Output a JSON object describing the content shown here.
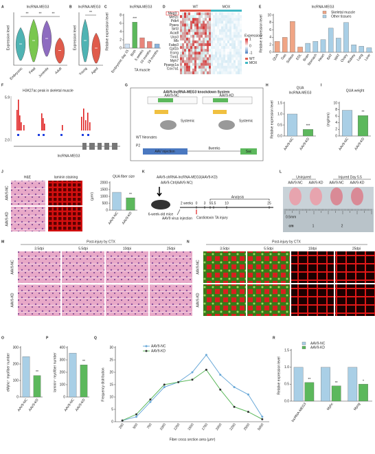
{
  "panels": {
    "A": {
      "label": "A",
      "title": "lncRNA-MEG3",
      "y_label": "Expression level",
      "categories": [
        "Embryonic",
        "Fetal",
        "Juvenile",
        "Adult"
      ],
      "annotations": [
        "**",
        "**",
        "**"
      ]
    },
    "B": {
      "label": "B",
      "title": "lncRNA-MEG3",
      "y_label": "Expression level",
      "categories": [
        "Young",
        "Aged"
      ],
      "annotations": [
        "**"
      ]
    },
    "D": {
      "label": "D",
      "groups": [
        "WT",
        "MOX"
      ],
      "highlight": "Meg3",
      "genes": [
        "Mef2c",
        "Pdk4",
        "Ppara",
        "Sirt3",
        "Acadl",
        "Ucp3",
        "Mb",
        "Fabp3",
        "Cpt1b",
        "Esrrg",
        "Tnni1",
        "Myh7",
        "Ppargc1a",
        "Cox7a1"
      ],
      "legend_title": "Expression",
      "legend_ticks": [
        "1",
        "0",
        "-1"
      ]
    },
    "F": {
      "label": "F",
      "title": "H3K27ac peak in skeletal muscle",
      "y_ticks": [
        "5.9",
        "2.0"
      ],
      "gene": "lncRNA-MEG3"
    },
    "G": {
      "label": "G",
      "title": "AAV9-lncRNA-MEG3 knockdown System",
      "constructs": [
        "AAV9-NC",
        "AAV9-KD"
      ],
      "route": [
        "Systemic",
        "Systemic"
      ],
      "neonates": "WT Neonates",
      "age": "P2",
      "injection": "AAV injection",
      "duration": "8weeks",
      "end": "Sac"
    },
    "J": {
      "label": "J",
      "images": [
        "H&E",
        "laminin staining"
      ],
      "rows": [
        "AAV9-NC",
        "AAV9-KD"
      ]
    },
    "K": {
      "label": "K",
      "groups": [
        "AAV9-shRNA-lncRNA-MEG3(AAV9-KD)",
        "AAV9-Ctrl(AAV9-NC)"
      ],
      "mice": "6-week-old mice",
      "injection": "AAV9 virus injection",
      "interval": "2 weeks",
      "injury": "Cardiotoxin TA injury",
      "analysis": "Analysis",
      "timeline": [
        "0",
        "3",
        "5",
        "5.5",
        "10",
        "25"
      ]
    },
    "L": {
      "label": "L",
      "groups": [
        "Uninjured",
        "Injured Day 5.5"
      ],
      "samples": [
        "AAV9-NC",
        "AAV9-KD",
        "AAV9-NC",
        "AAV9-KD"
      ],
      "scale": "0.5mm",
      "ruler": [
        "cm",
        "1",
        "2"
      ]
    },
    "M": {
      "label": "M",
      "title": "Post-injury by CTX",
      "columns": [
        "3.5dpi",
        "5.5dpi",
        "10dpi",
        "25dpi"
      ],
      "rows": [
        "AAV9-NC",
        "AAV9-KD"
      ]
    },
    "N": {
      "label": "N",
      "title": "Post-injury by CTX",
      "columns": [
        "3.5dpi",
        "5.5dpi",
        "10dpi",
        "25dpi"
      ],
      "rows": [
        "AAV9-NC",
        "AAV9-KD"
      ]
    }
  },
  "chart_data": [
    {
      "type": "bar",
      "panel": "C",
      "title": "lncRNA-MEG3",
      "y_label": "Relative expression level",
      "x_label": "TA muscle",
      "categories": [
        "Embryonic day 15",
        "Birth",
        "5 weeks",
        "10 months",
        "18 months"
      ],
      "values": [
        1.0,
        6.3,
        2.5,
        1.6,
        1.0
      ],
      "colors": [
        "#cfe0f2",
        "#5cb85c",
        "#e8857a",
        "#e8857a",
        "#8ab4dc"
      ],
      "ylim": [
        0,
        8
      ],
      "yticks": [
        0,
        2,
        4,
        6,
        8
      ],
      "annotations": [
        "***"
      ]
    },
    {
      "type": "bar",
      "panel": "E",
      "title": "lncRNA-MEG3",
      "y_label": "Relative expression level",
      "categories": [
        "QUA",
        "Gas",
        "Soleus",
        "EDL",
        "Brain",
        "Stomach",
        "Heart",
        "BAT",
        "WAT",
        "Ovary",
        "Kidney",
        "Lung",
        "Liver"
      ],
      "values": [
        2.9,
        4.0,
        8.3,
        1.4,
        2.4,
        2.9,
        3.4,
        6.5,
        3.8,
        8.0,
        2.0,
        1.6,
        1.2
      ],
      "colors": [
        "#f0a585",
        "#f0a585",
        "#f0a585",
        "#f0a585",
        "#a9cfe6",
        "#a9cfe6",
        "#a9cfe6",
        "#a9cfe6",
        "#a9cfe6",
        "#a9cfe6",
        "#a9cfe6",
        "#a9cfe6",
        "#a9cfe6"
      ],
      "legend": [
        {
          "name": "Skeletal muscle",
          "color": "#f0a585"
        },
        {
          "name": "Other tissues",
          "color": "#a9cfe6"
        }
      ],
      "ylim": [
        0,
        10
      ],
      "yticks": [
        0,
        2,
        4,
        6,
        8,
        10
      ]
    },
    {
      "type": "bar",
      "panel": "H",
      "title": "QUA",
      "subtitle": "lncRNA-MEG3",
      "y_label": "Relative expression level",
      "categories": [
        "AAV9-NC",
        "AAV9-KD"
      ],
      "values": [
        1.0,
        0.3
      ],
      "colors": [
        "#a9cfe6",
        "#5cb85c"
      ],
      "ylim": [
        0,
        1.5
      ],
      "yticks": [
        {
          "value": 0,
          "label": "0.0"
        },
        0.5,
        {
          "value": 1,
          "label": "1.0"
        },
        1.5
      ],
      "annotations": [
        "***"
      ]
    },
    {
      "type": "bar",
      "panel": "I",
      "title": "QUA weight",
      "y_label": "(mg/mm)",
      "categories": [
        "AAV9-NC",
        "AAV9-KD"
      ],
      "values": [
        7.8,
        6.2
      ],
      "colors": [
        "#a9cfe6",
        "#5cb85c"
      ],
      "ylim": [
        0,
        10
      ],
      "yticks": [
        0,
        2,
        4,
        6,
        8,
        10
      ],
      "annotations": [
        "**"
      ]
    },
    {
      "type": "bar",
      "title": "QUA fiber size",
      "y_label": "(µm²)",
      "categories": [
        "AAV9-NC",
        "AAV9-KD"
      ],
      "values": [
        1300,
        900
      ],
      "colors": [
        "#a9cfe6",
        "#5cb85c"
      ],
      "ylim": [
        0,
        2000
      ],
      "yticks": [
        0,
        500,
        1000,
        1500,
        2000
      ],
      "annotations": [
        "**"
      ]
    },
    {
      "type": "bar",
      "panel": "O",
      "y_label": "eMyhc⁺ myofiber number",
      "categories": [
        "AAV9-NC",
        "AAV9-KD"
      ],
      "values": [
        245,
        130
      ],
      "colors": [
        "#a9cfe6",
        "#5cb85c"
      ],
      "ylim": [
        0,
        300
      ],
      "yticks": [
        0,
        100,
        200,
        300
      ],
      "annotations": [
        "**"
      ]
    },
    {
      "type": "bar",
      "panel": "P",
      "y_label": "laminin⁺ myofiber number",
      "categories": [
        "AAV9-NC",
        "AAV9-KD"
      ],
      "values": [
        355,
        260
      ],
      "colors": [
        "#a9cfe6",
        "#5cb85c"
      ],
      "ylim": [
        0,
        400
      ],
      "yticks": [
        0,
        100,
        200,
        300,
        400
      ],
      "annotations": [
        "**"
      ]
    },
    {
      "type": "line",
      "panel": "Q",
      "y_label": "Frequency distribution",
      "x_label": "Fiber cross section area (µm²)",
      "categories": [
        "250",
        "500",
        "750",
        "1000",
        "1250",
        "1500",
        "1750",
        "2000",
        "2250",
        "2500",
        "5000"
      ],
      "series": [
        {
          "name": "AAV9-NC",
          "color": "#6aa9d8",
          "values": [
            0.5,
            2,
            8,
            14,
            16,
            20,
            27,
            19,
            14,
            11,
            2
          ]
        },
        {
          "name": "AAV9-KD",
          "color": "#5cb85c",
          "values": [
            0.5,
            3,
            9,
            15,
            16,
            17,
            21,
            13,
            6,
            4,
            1
          ]
        }
      ],
      "ylim": [
        0,
        30
      ],
      "yticks": [
        0,
        5,
        10,
        15,
        20,
        25,
        30
      ]
    },
    {
      "type": "bar",
      "panel": "R",
      "y_label": "Relative expression level",
      "categories": [
        "lncRNA-MEG3",
        "Myhc",
        "Myog"
      ],
      "series": [
        {
          "name": "AAV9-NC",
          "color": "#a9cfe6",
          "values": [
            1.0,
            1.0,
            1.0
          ]
        },
        {
          "name": "AAV9-KD",
          "color": "#5cb85c",
          "values": [
            0.55,
            0.45,
            0.5
          ]
        }
      ],
      "ylim": [
        0,
        1.5
      ],
      "yticks": [
        {
          "value": 0,
          "label": "0.0"
        },
        0.5,
        {
          "value": 1,
          "label": "1.0"
        },
        1.5
      ],
      "annotations": [
        "**",
        "**",
        "*"
      ]
    }
  ]
}
